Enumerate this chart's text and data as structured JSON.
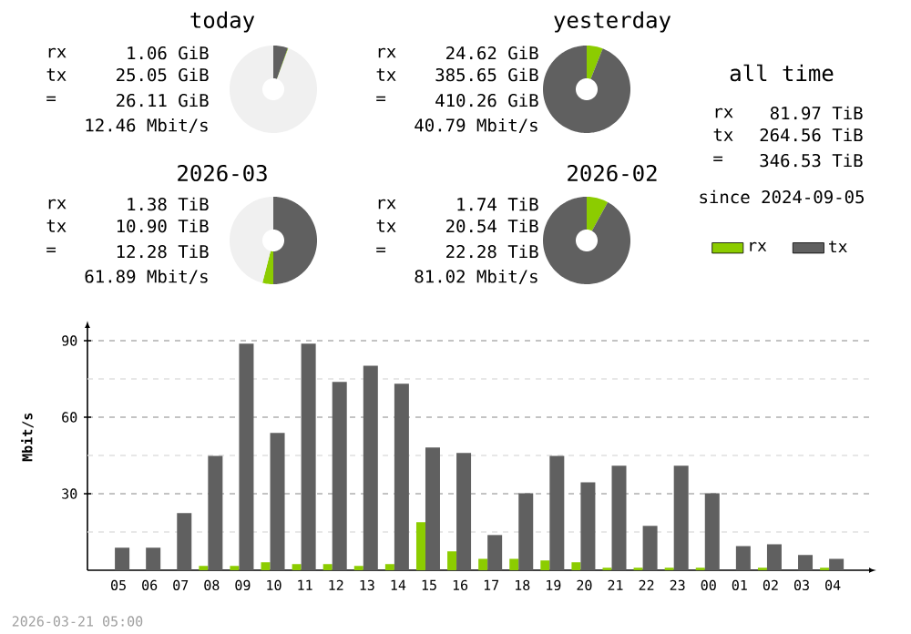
{
  "chart_data": [
    {
      "type": "donut",
      "title": "today",
      "categories": [
        null,
        null,
        null
      ],
      "values": [
        5.4,
        0.2,
        94.4
      ],
      "colors": [
        "#606060",
        "#8ccc00",
        "#f0f0f0"
      ],
      "annotations": [
        "rx",
        "1.06 GiB",
        "tx",
        "25.05 GiB",
        "=",
        "26.11 GiB",
        "12.46 Mbit/s"
      ]
    },
    {
      "type": "donut",
      "title": "yesterday",
      "categories": [
        null,
        null
      ],
      "values": [
        6,
        94
      ],
      "colors": [
        "#8ccc00",
        "#606060"
      ],
      "annotations": [
        "rx",
        "24.62 GiB",
        "tx",
        "385.65 GiB",
        "=",
        "410.26 GiB",
        "40.79 Mbit/s"
      ]
    },
    {
      "type": "other",
      "title": "all time",
      "annotations": [
        "rx",
        "81.97 TiB",
        "tx",
        "264.56 TiB",
        "=",
        "346.53 TiB",
        "since 2024-09-05"
      ]
    },
    {
      "type": "donut",
      "title": "2026-03",
      "categories": [
        null,
        null,
        null
      ],
      "values": [
        50,
        4,
        46
      ],
      "colors": [
        "#606060",
        "#8ccc00",
        "#f0f0f0"
      ],
      "annotations": [
        "rx",
        "1.38 TiB",
        "tx",
        "10.90 TiB",
        "=",
        "12.28 TiB",
        "61.89 Mbit/s"
      ]
    },
    {
      "type": "donut",
      "title": "2026-02",
      "categories": [
        null,
        null
      ],
      "values": [
        8,
        92
      ],
      "colors": [
        "#8ccc00",
        "#606060"
      ],
      "annotations": [
        "rx",
        "1.74 TiB",
        "tx",
        "20.54 TiB",
        "=",
        "22.28 TiB",
        "81.02 Mbit/s"
      ]
    },
    {
      "type": "bar",
      "ylabel": "Mbit/s",
      "categories": [
        "05",
        "06",
        "07",
        "08",
        "09",
        "10",
        "11",
        "12",
        "13",
        "14",
        "15",
        "16",
        "17",
        "18",
        "19",
        "20",
        "21",
        "22",
        "23",
        "00",
        "01",
        "02",
        "03",
        "04"
      ],
      "series": [
        {
          "name": "rx",
          "color": "#8ccc00",
          "values": [
            0,
            0,
            0,
            1.7,
            1.7,
            3.1,
            2.4,
            2.4,
            1.7,
            2.4,
            18.8,
            7.4,
            4.5,
            4.5,
            3.8,
            3.1,
            1.0,
            1.0,
            1.0,
            1.0,
            0,
            1.0,
            0,
            1.0
          ]
        },
        {
          "name": "tx",
          "color": "#606060",
          "values": [
            8.8,
            8.8,
            22.4,
            44.8,
            88.8,
            53.8,
            88.8,
            73.8,
            80.2,
            73.1,
            48.1,
            46.0,
            13.8,
            30.2,
            44.8,
            34.5,
            41.0,
            17.4,
            41.0,
            30.2,
            9.5,
            10.2,
            6.0,
            4.5
          ]
        }
      ],
      "ylim": [
        0,
        95
      ],
      "yticks": [
        {
          "value": 15,
          "label": null
        },
        30,
        {
          "value": 45,
          "label": null
        },
        60,
        {
          "value": 75,
          "label": null
        },
        90
      ],
      "grid": "y",
      "legend": "top right",
      "annotations": [
        "2026-03-21 05:00"
      ]
    }
  ]
}
